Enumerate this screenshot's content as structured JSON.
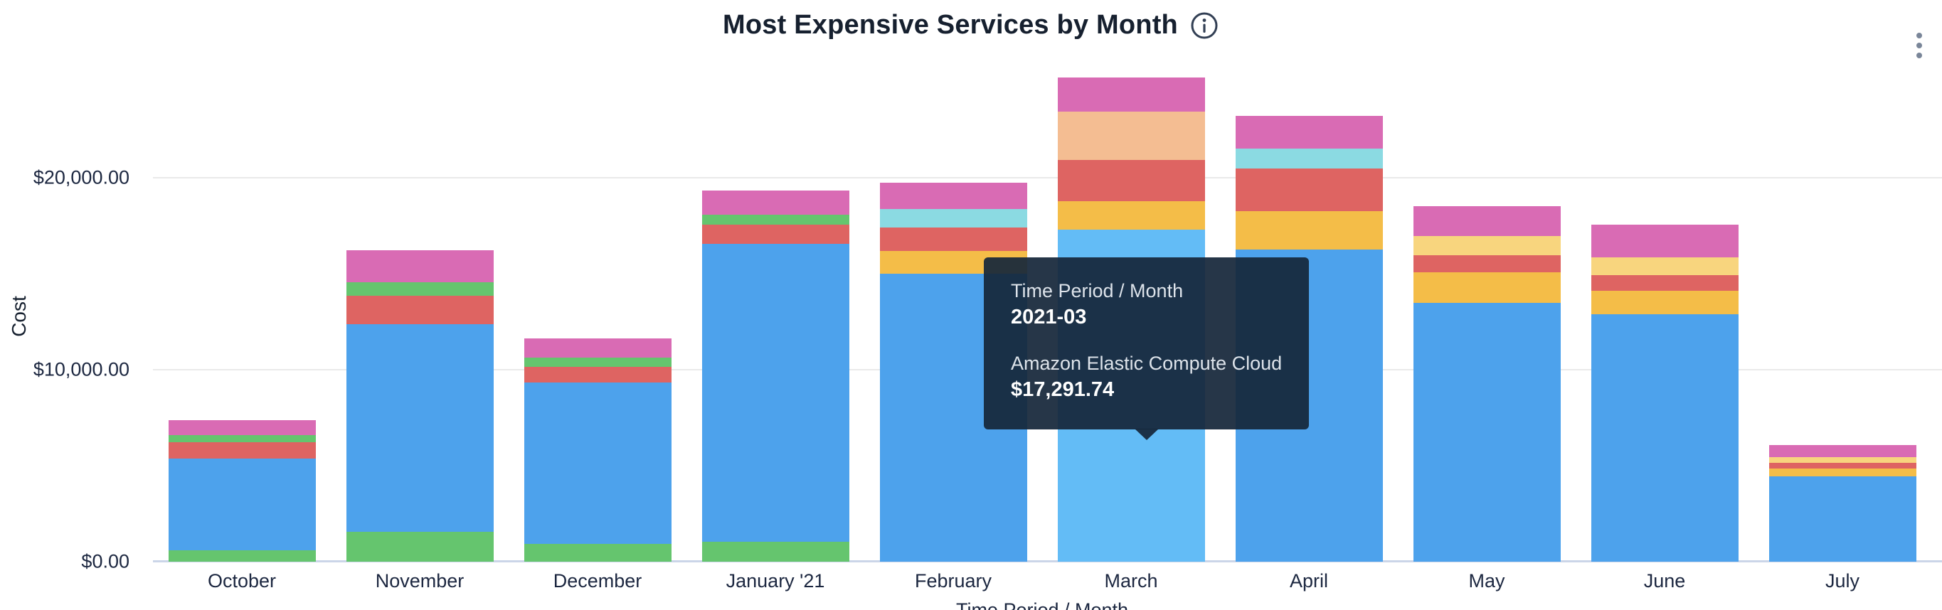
{
  "header": {
    "title": "Most Expensive Services by Month"
  },
  "tooltip": {
    "group_label": "Time Period / Month",
    "group_value": "2021-03",
    "series_label": "Amazon Elastic Compute Cloud",
    "series_value": "$17,291.74"
  },
  "chart_data": {
    "type": "bar",
    "stacked": true,
    "title": "Most Expensive Services by Month",
    "grid": "horizontal",
    "legend": "none",
    "note": "Stacked bar chart of service cost by month. Only the hovered series name is visible in the screenshot (blue = Amazon Elastic Compute Cloud, highlighted on March); other segments are identified by color only. Values estimated from pixel heights against the $10,000 gridline spacing.",
    "x_axis": {
      "title": "Time Period / Month",
      "categories": [
        "October",
        "November",
        "December",
        "January '21",
        "February",
        "March",
        "April",
        "May",
        "June",
        "July"
      ]
    },
    "y_axis": {
      "title": "Cost",
      "max": 25900,
      "ticks": [
        {
          "value": 0,
          "label": "$0.00"
        },
        {
          "value": 10000,
          "label": "$10,000.00"
        },
        {
          "value": 20000,
          "label": "$20,000.00"
        }
      ]
    },
    "series_names": {
      "blue": "Amazon Elastic Compute Cloud"
    },
    "palette": {
      "blue": "#4DA2EC",
      "blue_highlight": "#63BCF6",
      "green": "#65C56E",
      "red": "#DE6462",
      "pink": "#D96BB4",
      "yellow": "#F4BD48",
      "pale_yellow": "#F8D57E",
      "cyan": "#8BDAE2",
      "peach": "#F4BD92"
    },
    "highlight": {
      "category": "March",
      "segment_color": "blue"
    },
    "bars": [
      {
        "category": "October",
        "total": 7370,
        "segments": [
          {
            "color": "green",
            "value": 590
          },
          {
            "color": "blue",
            "value": 4780
          },
          {
            "color": "red",
            "value": 850
          },
          {
            "color": "green",
            "value": 370
          },
          {
            "color": "pink",
            "value": 780
          }
        ]
      },
      {
        "category": "November",
        "total": 16220,
        "segments": [
          {
            "color": "green",
            "value": 1555
          },
          {
            "color": "blue",
            "value": 10815
          },
          {
            "color": "red",
            "value": 1480
          },
          {
            "color": "green",
            "value": 705
          },
          {
            "color": "pink",
            "value": 1665
          }
        ]
      },
      {
        "category": "December",
        "total": 11625,
        "segments": [
          {
            "color": "green",
            "value": 925
          },
          {
            "color": "blue",
            "value": 8405
          },
          {
            "color": "red",
            "value": 815
          },
          {
            "color": "green",
            "value": 480
          },
          {
            "color": "pink",
            "value": 1000
          }
        ]
      },
      {
        "category": "January '21",
        "total": 19330,
        "segments": [
          {
            "color": "green",
            "value": 1035
          },
          {
            "color": "blue",
            "value": 15515
          },
          {
            "color": "red",
            "value": 1000
          },
          {
            "color": "green",
            "value": 520
          },
          {
            "color": "pink",
            "value": 1260
          }
        ]
      },
      {
        "category": "February",
        "total": 19740,
        "segments": [
          {
            "color": "blue",
            "value": 15000
          },
          {
            "color": "yellow",
            "value": 1185
          },
          {
            "color": "red",
            "value": 1220
          },
          {
            "color": "cyan",
            "value": 965
          },
          {
            "color": "pink",
            "value": 1370
          }
        ]
      },
      {
        "category": "March",
        "total": 25221.74,
        "segments": [
          {
            "color": "blue",
            "value": 17291.74
          },
          {
            "color": "yellow",
            "value": 1480
          },
          {
            "color": "red",
            "value": 2150
          },
          {
            "color": "peach",
            "value": 2520
          },
          {
            "color": "pink",
            "value": 1780
          }
        ]
      },
      {
        "category": "April",
        "total": 23220,
        "segments": [
          {
            "color": "blue",
            "value": 16260
          },
          {
            "color": "yellow",
            "value": 2000
          },
          {
            "color": "red",
            "value": 2220
          },
          {
            "color": "cyan",
            "value": 1035
          },
          {
            "color": "pink",
            "value": 1705
          }
        ]
      },
      {
        "category": "May",
        "total": 18515,
        "segments": [
          {
            "color": "blue",
            "value": 13480
          },
          {
            "color": "yellow",
            "value": 1590
          },
          {
            "color": "red",
            "value": 890
          },
          {
            "color": "pale_yellow",
            "value": 1000
          },
          {
            "color": "pink",
            "value": 1555
          }
        ]
      },
      {
        "category": "June",
        "total": 17555,
        "segments": [
          {
            "color": "blue",
            "value": 12890
          },
          {
            "color": "yellow",
            "value": 1220
          },
          {
            "color": "red",
            "value": 815
          },
          {
            "color": "pale_yellow",
            "value": 925
          },
          {
            "color": "pink",
            "value": 1705
          }
        ]
      },
      {
        "category": "July",
        "total": 6070,
        "segments": [
          {
            "color": "blue",
            "value": 4445
          },
          {
            "color": "yellow",
            "value": 405
          },
          {
            "color": "red",
            "value": 295
          },
          {
            "color": "pale_yellow",
            "value": 295
          },
          {
            "color": "pink",
            "value": 630
          }
        ]
      }
    ]
  }
}
